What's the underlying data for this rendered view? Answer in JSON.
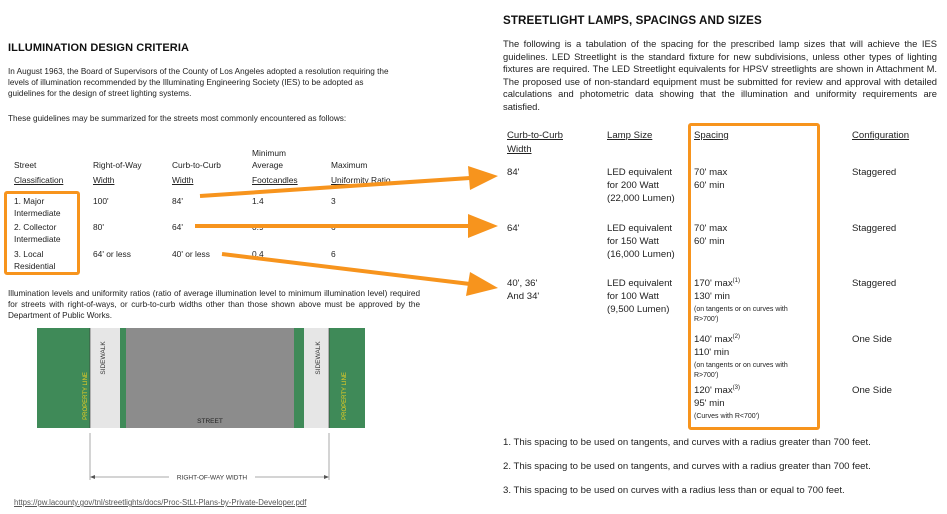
{
  "left": {
    "title": "ILLUMINATION DESIGN CRITERIA",
    "intro1": "In August 1963, the Board of Supervisors of the County of Los Angeles adopted a resolution requiring the levels of illumination recommended by the Illuminating Engineering Society (IES) to be adopted as guidelines for the design of street lighting systems.",
    "intro2": "These guidelines may be summarized for the streets most commonly encountered as follows:",
    "headers": {
      "col1_a": "Street",
      "col1_b": "Classification",
      "col2_a": "Right-of-Way",
      "col2_b": "Width",
      "col3_a": "Curb-to-Curb",
      "col3_b": "Width",
      "col4_a": "Minimum",
      "col4_b": "Average",
      "col4_c": "Footcandles",
      "col5_a": "Maximum",
      "col5_b": "Uniformity Ratio"
    },
    "rows": [
      {
        "c1a": "1.  Major",
        "c1b": "Intermediate",
        "c2": "100'",
        "c3": "84'",
        "c4": "1.4",
        "c5": "3"
      },
      {
        "c1a": "2.  Collector",
        "c1b": "Intermediate",
        "c2": "80'",
        "c3": "64'",
        "c4": "0.9",
        "c5": "6"
      },
      {
        "c1a": "3.  Local",
        "c1b": "Residential",
        "c2": "64' or less",
        "c3": "40' or less",
        "c4": "0.4",
        "c5": "6"
      }
    ],
    "note": "Illumination levels and uniformity ratios (ratio of average illumination level to minimum illumination level) required for streets with right-of-ways, or curb-to-curb widths other than those shown above must be approved by the Department of Public Works.",
    "diagram": {
      "sidewalk_left": "SIDEWALK",
      "sidewalk_right": "SIDEWALK",
      "property_left": "PROPERTY LINE",
      "property_right": "PROPERTY LINE",
      "street": "STREET",
      "row_width": "RIGHT-OF-WAY WIDTH"
    },
    "source_link": "https://pw.lacounty.gov/tnl/streetlights/docs/Proc-StLt-Plans-by-Private-Developer.pdf"
  },
  "right": {
    "title": "STREETLIGHT LAMPS, SPACINGS AND SIZES",
    "intro": "The following is a tabulation of the spacing for the prescribed lamp sizes that will achieve the IES guidelines. LED Streetlight is the standard fixture for new subdivisions, unless other types of lighting fixtures are required. The LED Streetlight equivalents for HPSV streetlights are shown in Attachment M.  The proposed use of non-standard equipment must be submitted for review and approval with detailed calculations and photometric data showing that the illumination and uniformity requirements are satisfied.",
    "headers": {
      "curb_a": "Curb-to-Curb",
      "curb_b": "Width",
      "lamp": "Lamp Size",
      "spacing": "Spacing",
      "config": "Configuration"
    },
    "rows": [
      {
        "curb_a": "84'",
        "curb_b": "",
        "lamp_a": "LED equivalent",
        "lamp_b": "for 200 Watt",
        "lamp_c": "(22,000 Lumen)",
        "sp_a": "70' max",
        "sp_b": "60' min",
        "config": "Staggered"
      },
      {
        "curb_a": "64'",
        "curb_b": "",
        "lamp_a": "LED equivalent",
        "lamp_b": "for 150 Watt",
        "lamp_c": "(16,000 Lumen)",
        "sp_a": "70' max",
        "sp_b": "60' min",
        "config": "Staggered"
      },
      {
        "curb_a": "40', 36'",
        "curb_b": "And 34'",
        "lamp_a": "LED equivalent",
        "lamp_b": "for 100 Watt",
        "lamp_c": "(9,500 Lumen)"
      }
    ],
    "spacing3": [
      {
        "max": "170' max",
        "sup": "(1)",
        "min": "130' min",
        "note_a": "(on tangents or on curves with",
        "note_b": "R>700')",
        "config": "Staggered"
      },
      {
        "max": "140' max",
        "sup": "(2)",
        "min": "110' min",
        "note_a": "(on tangents or on curves with",
        "note_b": "R>700')",
        "config": "One Side"
      },
      {
        "max": "120' max",
        "sup": "(3)",
        "min": "95' min",
        "note_a": "(Curves with R<700')",
        "note_b": "",
        "config": "One Side"
      }
    ],
    "footnotes": [
      "1.  This spacing to be used on tangents, and curves with a radius greater than 700 feet.",
      "2.  This spacing to be used on tangents, and curves with a radius greater than 700 feet.",
      "3.  This spacing to be used on curves with a radius less than or equal to 700 feet."
    ]
  },
  "colors": {
    "highlight": "#f7941d",
    "grass": "#3f8a58",
    "street": "#8c8c8c",
    "sidewalk": "#e6e6e6"
  }
}
